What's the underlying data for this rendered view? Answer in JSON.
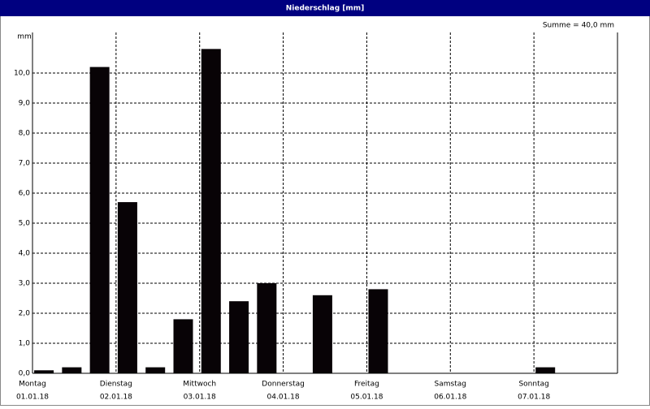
{
  "chart_data": {
    "type": "bar",
    "title": "Niederschlag [mm]",
    "annotation": "Summe = 40,0 mm",
    "y_unit": "mm",
    "x": [
      0,
      8,
      16,
      24,
      32,
      40,
      48,
      56,
      64,
      80,
      96,
      144
    ],
    "values": [
      0.1,
      0.2,
      10.2,
      5.7,
      0.2,
      1.8,
      10.8,
      2.4,
      3.0,
      2.6,
      2.8,
      0.2
    ],
    "interval": 8,
    "color": "#080306",
    "xlim": [
      0,
      168
    ],
    "xticks": [
      {
        "value": 0,
        "label": "Montag",
        "date": "01.01.18"
      },
      {
        "value": 24,
        "label": "Dienstag",
        "date": "02.01.18"
      },
      {
        "value": 48,
        "label": "Mittwoch",
        "date": "03.01.18"
      },
      {
        "value": 72,
        "label": "Donnerstag",
        "date": "04.01.18"
      },
      {
        "value": 96,
        "label": "Freitag",
        "date": "05.01.18"
      },
      {
        "value": 120,
        "label": "Samstag",
        "date": "06.01.18"
      },
      {
        "value": 144,
        "label": "Sonntag",
        "date": "07.01.18"
      }
    ],
    "ylim": [
      0,
      11.35
    ],
    "yticks": [
      {
        "value": 0,
        "label": "0,0"
      },
      {
        "value": 1,
        "label": "1,0"
      },
      {
        "value": 2,
        "label": "2,0"
      },
      {
        "value": 3,
        "label": "3,0"
      },
      {
        "value": 4,
        "label": "4,0"
      },
      {
        "value": 5,
        "label": "5,0"
      },
      {
        "value": 6,
        "label": "6,0"
      },
      {
        "value": 7,
        "label": "7,0"
      },
      {
        "value": 8,
        "label": "8,0"
      },
      {
        "value": 9,
        "label": "9,0"
      },
      {
        "value": 10,
        "label": "10,0"
      }
    ],
    "grid": true
  }
}
